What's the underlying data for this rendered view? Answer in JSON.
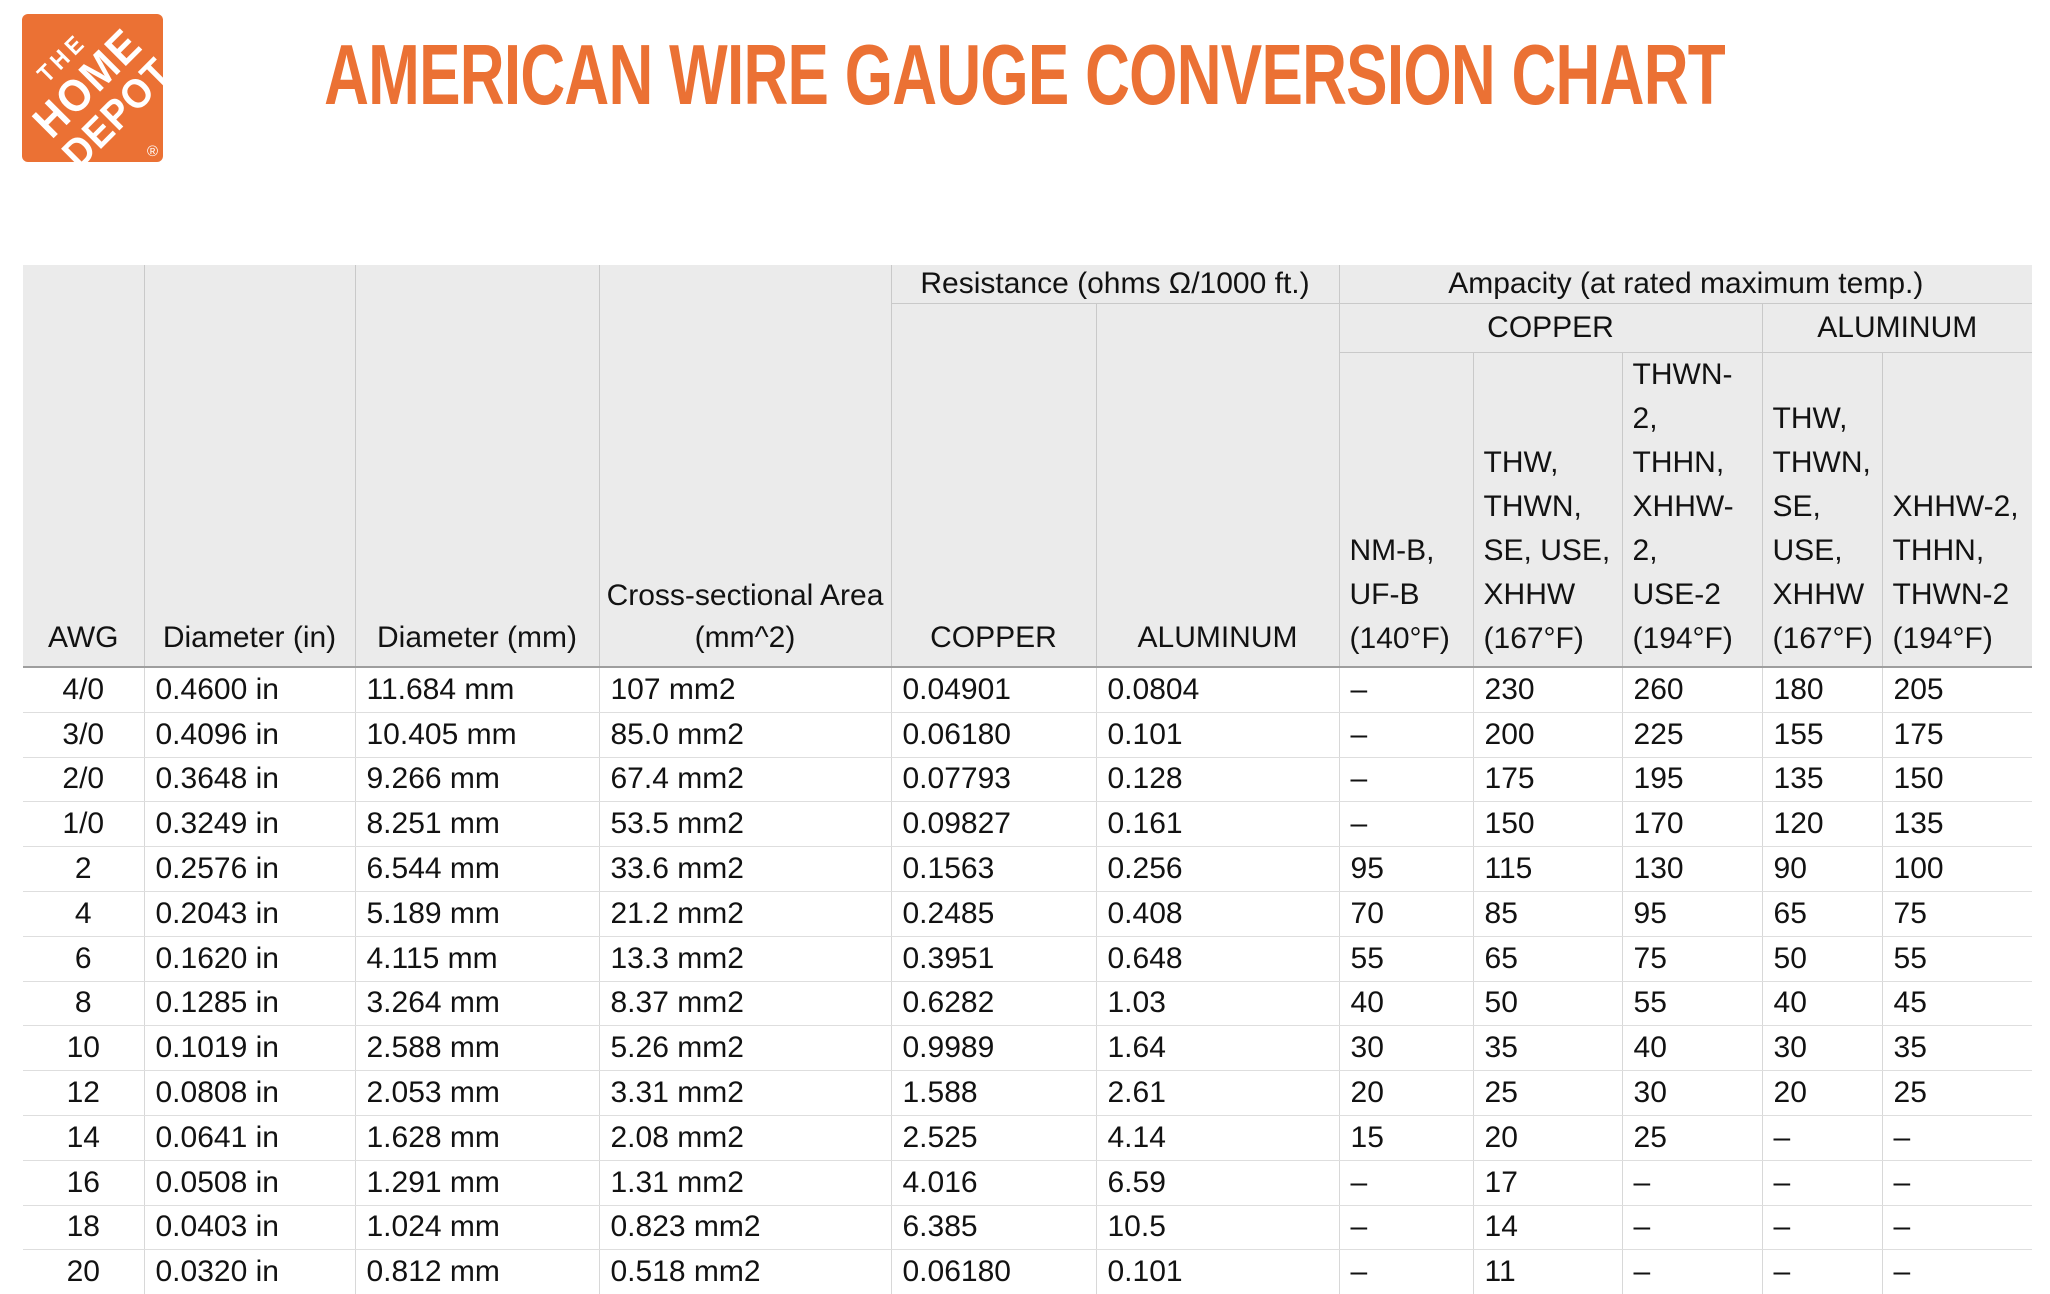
{
  "brand": {
    "name_lines": [
      "THE",
      "HOME",
      "DEPOT"
    ],
    "registered_mark": "®",
    "orange": "#EB7134",
    "logo_text_color": "#FFFFFF"
  },
  "title": {
    "text": "AMERICAN WIRE GAUGE CONVERSION CHART",
    "color": "#EB7134"
  },
  "chart_data": {
    "type": "table",
    "title": "AMERICAN WIRE GAUGE CONVERSION CHART",
    "group_headers": {
      "resistance": "Resistance (ohms Ω/1000 ft.)",
      "ampacity": "Ampacity (at rated maximum temp.)",
      "ampacity_copper": "COPPER",
      "ampacity_aluminum": "ALUMINUM"
    },
    "columns": [
      {
        "label": "AWG"
      },
      {
        "label": "Diameter (in)"
      },
      {
        "label": "Diameter (mm)"
      },
      {
        "label": "Cross-sectional Area\n(mm^2)"
      },
      {
        "label": "COPPER",
        "group": "Resistance (ohms Ω/1000 ft.)"
      },
      {
        "label": "ALUMINUM",
        "group": "Resistance (ohms Ω/1000 ft.)"
      },
      {
        "label": "NM-B,\nUF-B\n(140°F)",
        "group": "Ampacity COPPER"
      },
      {
        "label": "THW,\nTHWN,\nSE, USE,\nXHHW\n(167°F)",
        "group": "Ampacity COPPER"
      },
      {
        "label": "THWN-2,\nTHHN,\nXHHW-2,\nUSE-2\n(194°F)",
        "group": "Ampacity COPPER"
      },
      {
        "label": "THW,\nTHWN,\nSE, USE,\nXHHW\n(167°F)",
        "group": "Ampacity ALUMINUM"
      },
      {
        "label": "XHHW-2,\nTHHN,\nTHWN-2\n(194°F)",
        "group": "Ampacity ALUMINUM"
      }
    ],
    "rows": [
      [
        "4/0",
        "0.4600 in",
        "11.684 mm",
        "107 mm2",
        "0.04901",
        "0.0804",
        "–",
        "230",
        "260",
        "180",
        "205"
      ],
      [
        "3/0",
        "0.4096 in",
        "10.405 mm",
        "85.0 mm2",
        "0.06180",
        "0.101",
        "–",
        "200",
        "225",
        "155",
        "175"
      ],
      [
        "2/0",
        "0.3648 in",
        "9.266 mm",
        "67.4 mm2",
        "0.07793",
        "0.128",
        "–",
        "175",
        "195",
        "135",
        "150"
      ],
      [
        "1/0",
        "0.3249 in",
        "8.251 mm",
        "53.5 mm2",
        "0.09827",
        "0.161",
        "–",
        "150",
        "170",
        "120",
        "135"
      ],
      [
        "2",
        "0.2576 in",
        "6.544 mm",
        "33.6 mm2",
        "0.1563",
        "0.256",
        "95",
        "115",
        "130",
        "90",
        "100"
      ],
      [
        "4",
        "0.2043 in",
        "5.189 mm",
        "21.2 mm2",
        "0.2485",
        "0.408",
        "70",
        "85",
        "95",
        "65",
        "75"
      ],
      [
        "6",
        "0.1620 in",
        "4.115 mm",
        "13.3 mm2",
        "0.3951",
        "0.648",
        "55",
        "65",
        "75",
        "50",
        "55"
      ],
      [
        "8",
        "0.1285 in",
        "3.264 mm",
        "8.37 mm2",
        "0.6282",
        "1.03",
        "40",
        "50",
        "55",
        "40",
        "45"
      ],
      [
        "10",
        "0.1019 in",
        "2.588 mm",
        "5.26 mm2",
        "0.9989",
        "1.64",
        "30",
        "35",
        "40",
        "30",
        "35"
      ],
      [
        "12",
        "0.0808 in",
        "2.053 mm",
        "3.31 mm2",
        "1.588",
        "2.61",
        "20",
        "25",
        "30",
        "20",
        "25"
      ],
      [
        "14",
        "0.0641 in",
        "1.628 mm",
        "2.08 mm2",
        "2.525",
        "4.14",
        "15",
        "20",
        "25",
        "–",
        "–"
      ],
      [
        "16",
        "0.0508 in",
        "1.291 mm",
        "1.31 mm2",
        "4.016",
        "6.59",
        "–",
        "17",
        "–",
        "–",
        "–"
      ],
      [
        "18",
        "0.0403 in",
        "1.024 mm",
        "0.823 mm2",
        "6.385",
        "10.5",
        "–",
        "14",
        "–",
        "–",
        "–"
      ],
      [
        "20",
        "0.0320 in",
        "0.812 mm",
        "0.518 mm2",
        "0.06180",
        "0.101",
        "–",
        "11",
        "–",
        "–",
        "–"
      ]
    ]
  }
}
